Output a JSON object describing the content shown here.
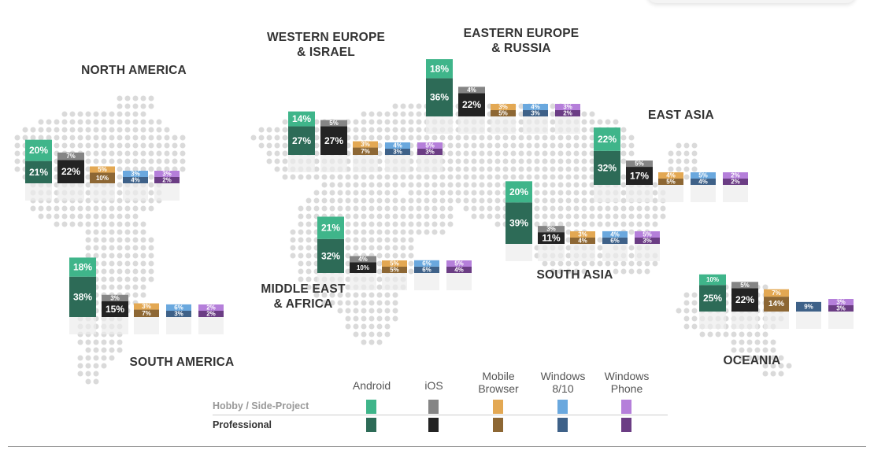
{
  "legend": {
    "platforms": [
      {
        "key": "android",
        "label_lines": [
          "Android"
        ],
        "hobby_color": "#3fb58a",
        "pro_color": "#2d6b57"
      },
      {
        "key": "ios",
        "label_lines": [
          "iOS"
        ],
        "hobby_color": "#858585",
        "pro_color": "#232323"
      },
      {
        "key": "mobile",
        "label_lines": [
          "Mobile",
          "Browser"
        ],
        "hobby_color": "#e3a853",
        "pro_color": "#8d6734"
      },
      {
        "key": "windows",
        "label_lines": [
          "Windows",
          "8/10"
        ],
        "hobby_color": "#6aa8de",
        "pro_color": "#3e6188"
      },
      {
        "key": "phone",
        "label_lines": [
          "Windows",
          "Phone"
        ],
        "hobby_color": "#b57fda",
        "pro_color": "#6b3d84"
      }
    ],
    "hobby_label": "Hobby / Side-Project",
    "pro_label": "Professional"
  },
  "chart_data": {
    "type": "bar",
    "categories": [
      "Android",
      "iOS",
      "Mobile Browser",
      "Windows 8/10",
      "Windows Phone"
    ],
    "regions": [
      {
        "key": "north_america",
        "name_lines": [
          "NORTH AMERICA"
        ],
        "hobby": [
          20,
          7,
          5,
          3,
          3
        ],
        "professional": [
          21,
          22,
          10,
          4,
          2
        ]
      },
      {
        "key": "south_america",
        "name_lines": [
          "SOUTH AMERICA"
        ],
        "hobby": [
          18,
          3,
          3,
          6,
          2
        ],
        "professional": [
          38,
          15,
          7,
          3,
          2
        ]
      },
      {
        "key": "western_europe",
        "name_lines": [
          "WESTERN EUROPE",
          "& ISRAEL"
        ],
        "hobby": [
          14,
          5,
          3,
          4,
          5
        ],
        "professional": [
          27,
          27,
          7,
          3,
          3
        ]
      },
      {
        "key": "eastern_europe",
        "name_lines": [
          "EASTERN EUROPE",
          "& RUSSIA"
        ],
        "hobby": [
          18,
          4,
          3,
          4,
          3
        ],
        "professional": [
          36,
          22,
          5,
          3,
          2
        ]
      },
      {
        "key": "middle_east",
        "name_lines": [
          "MIDDLE EAST",
          "& AFRICA"
        ],
        "hobby": [
          21,
          4,
          5,
          6,
          5
        ],
        "professional": [
          32,
          10,
          5,
          6,
          4
        ]
      },
      {
        "key": "south_asia",
        "name_lines": [
          "SOUTH ASIA"
        ],
        "hobby": [
          20,
          3,
          3,
          4,
          5
        ],
        "professional": [
          39,
          11,
          4,
          6,
          3
        ]
      },
      {
        "key": "east_asia",
        "name_lines": [
          "EAST ASIA"
        ],
        "hobby": [
          22,
          5,
          4,
          5,
          2
        ],
        "professional": [
          32,
          17,
          5,
          4,
          2
        ]
      },
      {
        "key": "oceania",
        "name_lines": [
          "OCEANIA"
        ],
        "hobby": [
          10,
          5,
          7,
          0,
          3
        ],
        "professional": [
          25,
          22,
          14,
          9,
          3
        ]
      }
    ]
  }
}
